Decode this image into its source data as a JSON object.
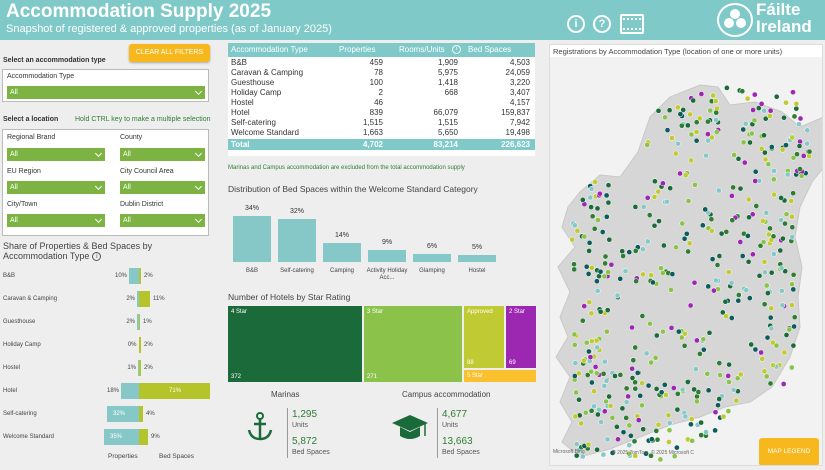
{
  "header": {
    "title": "Accommodation Supply 2025",
    "subtitle": "Snapshot of registered & approved properties (as of January 2025)",
    "info_icon": "i",
    "help_icon": "?",
    "video_icon": "film-icon",
    "logo_line1": "Fáilte",
    "logo_line2": "Ireland"
  },
  "filters": {
    "clear_label": "CLEAR ALL FILTERS",
    "select_type_label": "Select an accommodation type",
    "accommodation_type_label": "Accommodation Type",
    "select_location_label": "Select a location",
    "ctrl_hint": "Hold CTRL key to make a multiple selection",
    "regional_brand_label": "Regional Brand",
    "county_label": "County",
    "eu_region_label": "EU Region",
    "city_council_label": "City Council Area",
    "city_town_label": "City/Town",
    "dublin_district_label": "Dublin District",
    "all_value": "All"
  },
  "share_chart": {
    "title": "Share of Properties & Bed Spaces by Accommodation Type",
    "x_labels": [
      "Properties",
      "Bed Spaces"
    ],
    "colors": {
      "properties": "#86c8c8",
      "bed_spaces": "#b5c42a"
    }
  },
  "table": {
    "headers": [
      "Accommodation Type",
      "Properties",
      "Rooms/Units",
      "Bed Spaces"
    ],
    "rows": [
      [
        "B&B",
        "459",
        "1,909",
        "4,503"
      ],
      [
        "Caravan & Camping",
        "78",
        "5,975",
        "24,059"
      ],
      [
        "Guesthouse",
        "100",
        "1,418",
        "3,220"
      ],
      [
        "Holiday Camp",
        "2",
        "668",
        "3,407"
      ],
      [
        "Hostel",
        "46",
        "",
        "4,157"
      ],
      [
        "Hotel",
        "839",
        "66,079",
        "159,837"
      ],
      [
        "Self-catering",
        "1,515",
        "1,515",
        "7,942"
      ],
      [
        "Welcome Standard",
        "1,663",
        "5,650",
        "19,498"
      ]
    ],
    "total": [
      "Total",
      "4,702",
      "83,214",
      "226,623"
    ]
  },
  "note": "Marinas and Campus accommodation are excluded from the total accommodation supply",
  "welcome_chart": {
    "title": "Distribution of Bed Spaces within the Welcome Standard Category"
  },
  "hotels_chart": {
    "title": "Number of Hotels by Star Rating"
  },
  "marinas": {
    "title": "Marinas",
    "units": "1,295",
    "units_label": "Units",
    "beds": "5,872",
    "beds_label": "Bed Spaces"
  },
  "campus": {
    "title": "Campus accommodation",
    "units": "4,677",
    "units_label": "Units",
    "beds": "13,663",
    "beds_label": "Bed Spaces"
  },
  "map": {
    "title": "Registrations by Accommodation Type (location of one or more units)",
    "legend_button": "MAP LEGEND",
    "attribution": "© 2025 TomTom, © 2025 Microsoft C",
    "ms_logo": "Microsoft Bing"
  },
  "chart_data": [
    {
      "type": "bar",
      "title": "Share of Properties & Bed Spaces by Accommodation Type",
      "categories": [
        "B&B",
        "Caravan & Camping",
        "Guesthouse",
        "Holiday Camp",
        "Hostel",
        "Hotel",
        "Self-catering",
        "Welcome Standard"
      ],
      "series": [
        {
          "name": "Properties",
          "values": [
            10,
            2,
            2,
            0,
            1,
            18,
            32,
            35
          ],
          "labels": [
            "10%",
            "2%",
            "2%",
            "0%",
            "1%",
            "18%",
            "32%",
            "35%"
          ]
        },
        {
          "name": "Bed Spaces",
          "values": [
            2,
            11,
            1,
            2,
            2,
            71,
            4,
            9
          ],
          "labels": [
            "2%",
            "11%",
            "1%",
            "2%",
            "2%",
            "71%",
            "4%",
            "9%"
          ]
        }
      ]
    },
    {
      "type": "bar",
      "title": "Distribution of Bed Spaces within the Welcome Standard Category",
      "categories": [
        "B&B",
        "Self-catering",
        "Camping",
        "Activity Holiday Acc...",
        "Glamping",
        "Hostel"
      ],
      "values": [
        34,
        32,
        14,
        9,
        6,
        5
      ],
      "labels": [
        "34%",
        "32%",
        "14%",
        "9%",
        "6%",
        "5%"
      ]
    },
    {
      "type": "treemap",
      "title": "Number of Hotels by Star Rating",
      "categories": [
        "4 Star",
        "3 Star",
        "Approved",
        "2 Star",
        "5 Star"
      ],
      "values": [
        372,
        271,
        88,
        69,
        null
      ],
      "colors": [
        "#1b6b3a",
        "#8bc34a",
        "#c0ca33",
        "#9c27b0",
        "#fbc02d"
      ]
    }
  ]
}
